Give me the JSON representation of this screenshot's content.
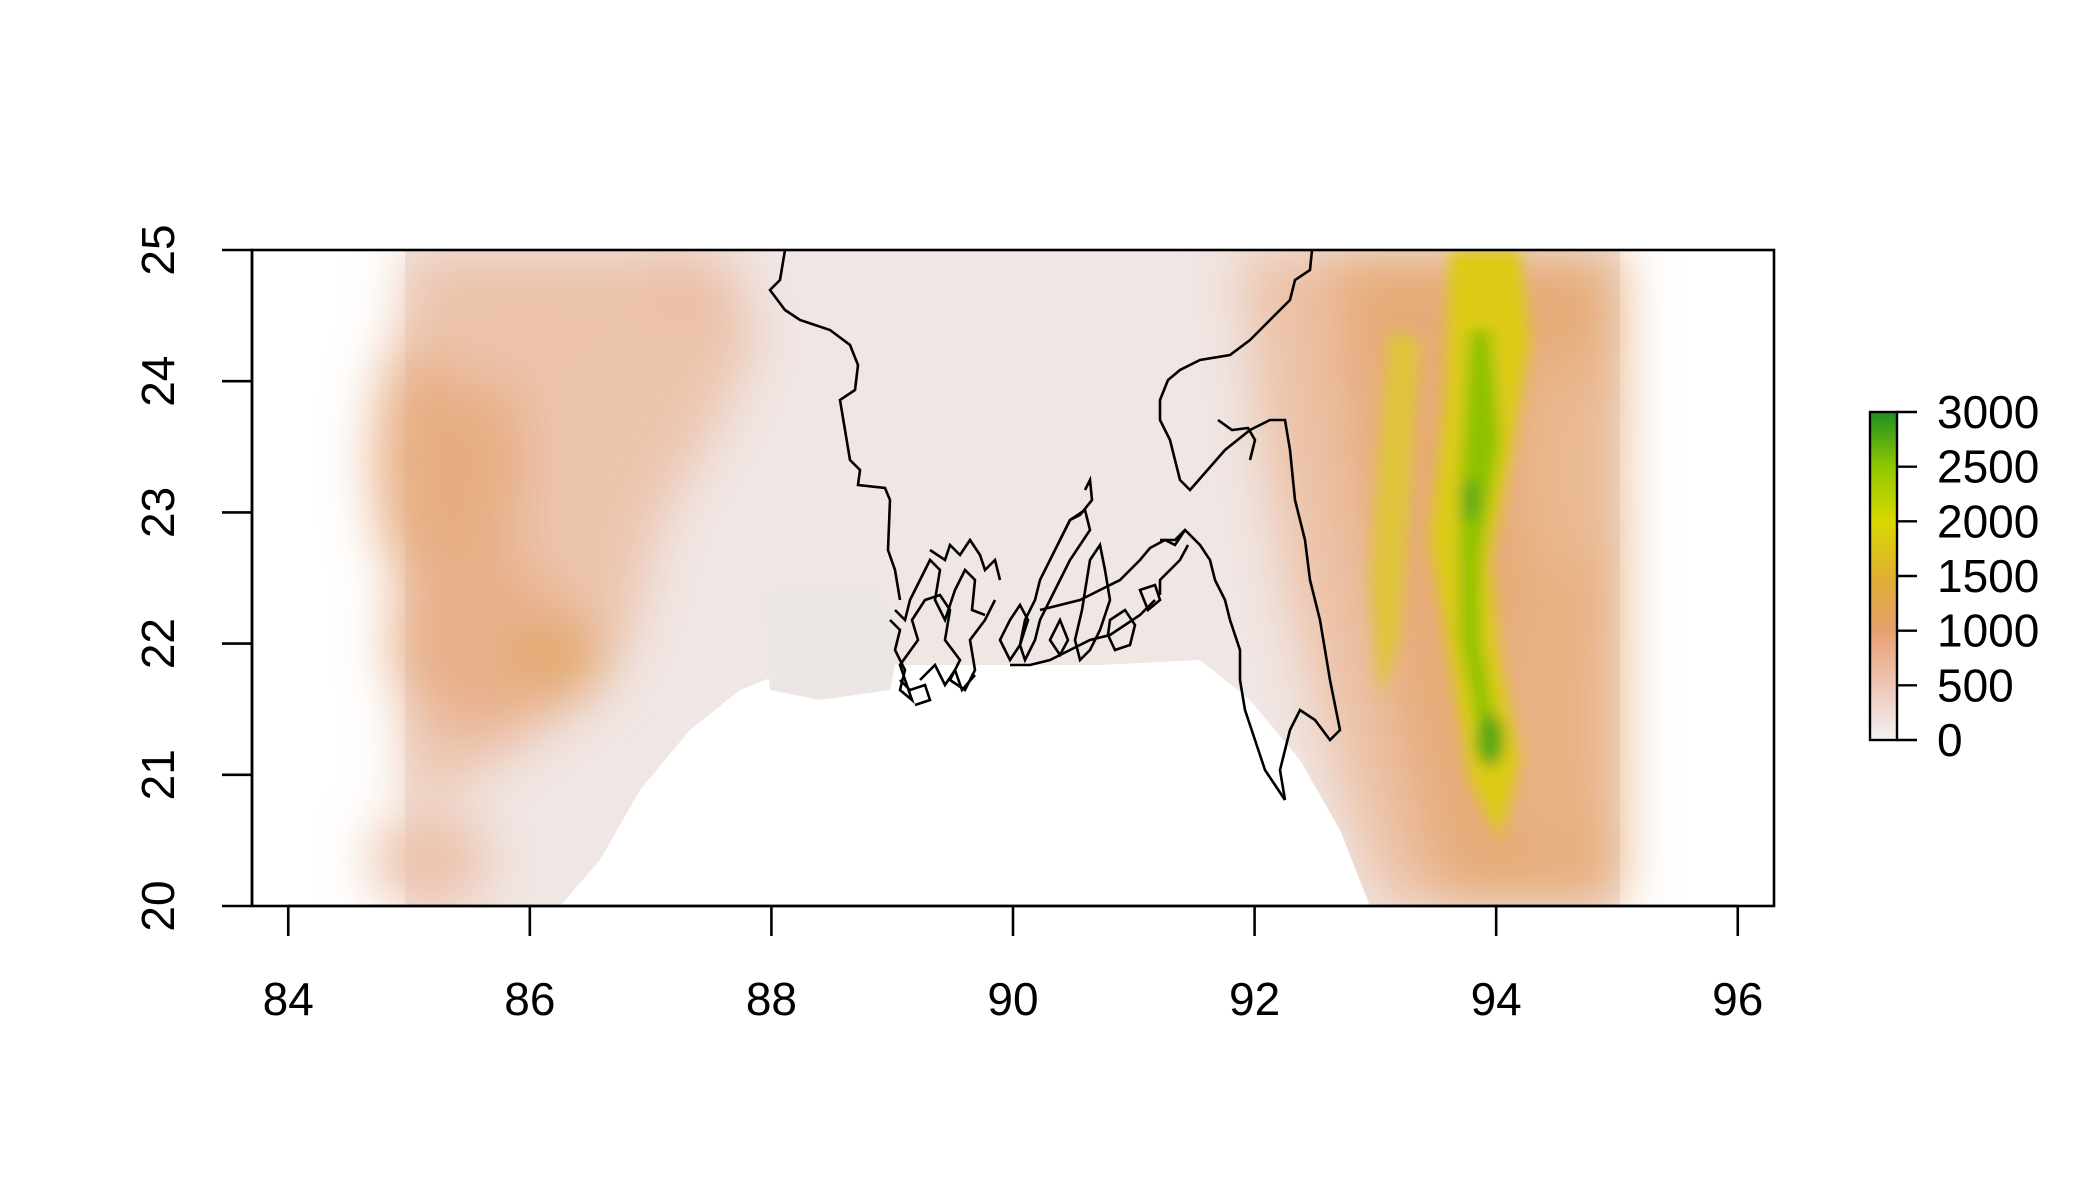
{
  "chart_data": {
    "type": "heatmap",
    "title": "",
    "xlabel": "",
    "ylabel": "",
    "xlim": [
      83.7,
      96.3
    ],
    "ylim": [
      20,
      25
    ],
    "x_ticks": [
      {
        "value": 84,
        "label": "84"
      },
      {
        "value": 86,
        "label": "86"
      },
      {
        "value": 88,
        "label": "88"
      },
      {
        "value": 90,
        "label": "90"
      },
      {
        "value": 92,
        "label": "92"
      },
      {
        "value": 94,
        "label": "94"
      },
      {
        "value": 96,
        "label": "96"
      }
    ],
    "y_ticks": [
      {
        "value": 20,
        "label": "20"
      },
      {
        "value": 21,
        "label": "21"
      },
      {
        "value": 22,
        "label": "22"
      },
      {
        "value": 23,
        "label": "23"
      },
      {
        "value": 24,
        "label": "24"
      },
      {
        "value": 25,
        "label": "25"
      }
    ],
    "raster_extent": {
      "lon": [
        85,
        95
      ],
      "lat": [
        20,
        25
      ]
    },
    "legend": {
      "placement": "right",
      "range": [
        0,
        3000
      ],
      "ticks": [
        {
          "value": 0,
          "label": "0"
        },
        {
          "value": 500,
          "label": "500"
        },
        {
          "value": 1000,
          "label": "1000"
        },
        {
          "value": 1500,
          "label": "1500"
        },
        {
          "value": 2000,
          "label": "2000"
        },
        {
          "value": 2500,
          "label": "2500"
        },
        {
          "value": 3000,
          "label": "3000"
        }
      ],
      "colors": [
        "#f2f2f2",
        "#eec5b5",
        "#e8a070",
        "#e0b030",
        "#d8d800",
        "#90c800",
        "#1e9020"
      ]
    },
    "colors": {
      "water": "#ffffff",
      "lowland": "#f0e6e4",
      "mid": "#ebbd9c",
      "high_orange": "#e4a65e",
      "high_yellow": "#dcd200",
      "peak_green": "#3c9c1a",
      "boundary": "#000000"
    }
  }
}
